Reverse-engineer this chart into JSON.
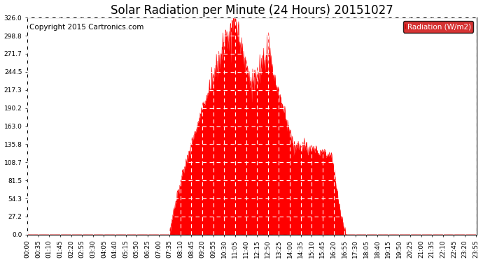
{
  "title": "Solar Radiation per Minute (24 Hours) 20151027",
  "copyright_text": "Copyright 2015 Cartronics.com",
  "legend_label": "Radiation (W/m2)",
  "background_color": "#ffffff",
  "plot_bg_color": "#ffffff",
  "fill_color": "#ff0000",
  "line_color": "#ff0000",
  "dashed_zero_color": "#ff0000",
  "grid_color": "#c0c0c0",
  "legend_bg": "#cc0000",
  "legend_text_color": "#ffffff",
  "ylim": [
    0.0,
    326.0
  ],
  "yticks": [
    0.0,
    27.2,
    54.3,
    81.5,
    108.7,
    135.8,
    163.0,
    190.2,
    217.3,
    244.5,
    271.7,
    298.8,
    326.0
  ],
  "total_minutes": 1440,
  "x_tick_interval": 35,
  "title_fontsize": 12,
  "axis_fontsize": 6.5,
  "copyright_fontsize": 7.5,
  "figsize": [
    6.9,
    3.75
  ],
  "dpi": 100
}
